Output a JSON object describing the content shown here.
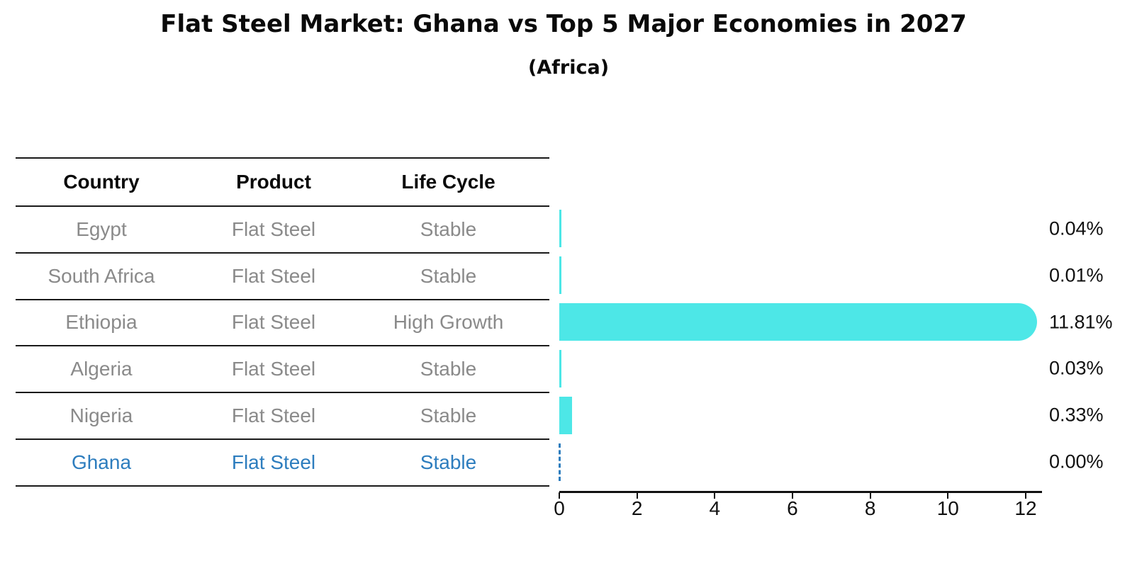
{
  "title": "Flat Steel Market: Ghana vs Top 5 Major Economies in 2027",
  "subtitle": "(Africa)",
  "table": {
    "headers": [
      "Country",
      "Product",
      "Life Cycle"
    ],
    "rows": [
      {
        "country": "Egypt",
        "product": "Flat Steel",
        "life_cycle": "Stable",
        "highlighted": false
      },
      {
        "country": "South Africa",
        "product": "Flat Steel",
        "life_cycle": "Stable",
        "highlighted": false
      },
      {
        "country": "Ethiopia",
        "product": "Flat Steel",
        "life_cycle": "High Growth",
        "highlighted": false
      },
      {
        "country": "Algeria",
        "product": "Flat Steel",
        "life_cycle": "Stable",
        "highlighted": false
      },
      {
        "country": "Nigeria",
        "product": "Flat Steel",
        "life_cycle": "Stable",
        "highlighted": false
      },
      {
        "country": "Ghana",
        "product": "Flat Steel",
        "life_cycle": "Stable",
        "highlighted": true
      }
    ]
  },
  "chart_data": {
    "type": "bar",
    "orientation": "horizontal",
    "title": "Flat Steel Market: Ghana vs Top 5 Major Economies in 2027",
    "subtitle": "(Africa)",
    "categories": [
      "Egypt",
      "South Africa",
      "Ethiopia",
      "Algeria",
      "Nigeria",
      "Ghana"
    ],
    "values": [
      0.04,
      0.01,
      11.81,
      0.03,
      0.33,
      0.0
    ],
    "value_labels": [
      "0.04%",
      "0.01%",
      "11.81%",
      "0.03%",
      "0.33%",
      "0.00%"
    ],
    "xlabel": "",
    "ylabel": "",
    "xlim": [
      0,
      12.45
    ],
    "xticks": [
      0,
      2,
      4,
      6,
      8,
      10,
      12
    ],
    "grid": false,
    "legend": false,
    "bar_color": "#4DE7E7",
    "highlight_color": "#2D7DBE",
    "axis_color": "#111111",
    "text_color_muted": "#8a8a8a",
    "zero_value_marker": "dashed vertical line at 0 for Ghana"
  }
}
